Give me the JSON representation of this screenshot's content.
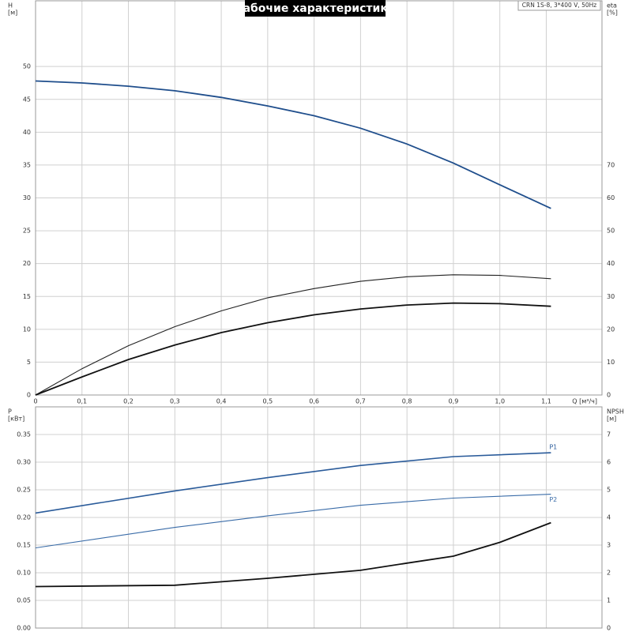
{
  "chart_data": [
    {
      "type": "line",
      "title": "Рабочие характеристики",
      "annotation": "CRN 1S-8, 3*400 V, 50Hz",
      "ylabel": "H",
      "yunit": "[м]",
      "y2label": "eta",
      "y2unit": "[%]",
      "xlabel": "Q [м³/ч]",
      "xlim": [
        0,
        1.22
      ],
      "xticks": [
        0,
        {
          "value": 0.1,
          "label": "0,1"
        },
        {
          "value": 0.2,
          "label": "0,2"
        },
        {
          "value": 0.3,
          "label": "0,3"
        },
        {
          "value": 0.4,
          "label": "0,4"
        },
        {
          "value": 0.5,
          "label": "0,5"
        },
        {
          "value": 0.6,
          "label": "0,6"
        },
        {
          "value": 0.7,
          "label": "0,7"
        },
        {
          "value": 0.8,
          "label": "0,8"
        },
        {
          "value": 0.9,
          "label": "0,9"
        },
        {
          "value": 1.0,
          "label": "1,0"
        },
        {
          "value": 1.1,
          "label": "1,1"
        }
      ],
      "ylim": [
        0,
        60
      ],
      "yticks": [
        0,
        5,
        10,
        15,
        20,
        25,
        30,
        35,
        40,
        45,
        50
      ],
      "y2lim": [
        0,
        120
      ],
      "y2ticks": [
        0,
        10,
        20,
        30,
        40,
        50,
        60,
        70
      ],
      "grid": true,
      "series": [
        {
          "color": "#1f4e8c",
          "width": 1.8,
          "x": [
            0,
            0.1,
            0.2,
            0.3,
            0.4,
            0.5,
            0.6,
            0.7,
            0.8,
            0.9,
            1.0,
            1.11
          ],
          "values": [
            47.8,
            47.5,
            47.0,
            46.3,
            45.3,
            44.0,
            42.5,
            40.6,
            38.2,
            35.3,
            32.0,
            28.4
          ]
        },
        {
          "color": "#222222",
          "width": 1.1,
          "axis": "y2",
          "x": [
            0,
            0.1,
            0.2,
            0.3,
            0.4,
            0.5,
            0.6,
            0.7,
            0.8,
            0.9,
            1.0,
            1.11
          ],
          "values": [
            0,
            8,
            15,
            20.8,
            25.6,
            29.6,
            32.4,
            34.6,
            36,
            36.6,
            36.4,
            35.4
          ]
        },
        {
          "color": "#111111",
          "width": 1.8,
          "axis": "y2",
          "x": [
            0,
            0.1,
            0.2,
            0.3,
            0.4,
            0.5,
            0.6,
            0.7,
            0.8,
            0.9,
            1.0,
            1.11
          ],
          "values": [
            0,
            5.5,
            10.8,
            15.2,
            19,
            22,
            24.4,
            26.2,
            27.4,
            28,
            27.8,
            27
          ]
        }
      ]
    },
    {
      "type": "line",
      "ylabel": "P",
      "yunit": "[кВт]",
      "y2label": "NPSH",
      "y2unit": "[м]",
      "xlim": [
        0,
        1.22
      ],
      "ylim": [
        0,
        0.4
      ],
      "yticks": [
        {
          "value": 0,
          "label": "0.00"
        },
        {
          "value": 0.05,
          "label": "0.05"
        },
        {
          "value": 0.1,
          "label": "0.10"
        },
        {
          "value": 0.15,
          "label": "0.15"
        },
        {
          "value": 0.2,
          "label": "0.20"
        },
        {
          "value": 0.25,
          "label": "0.25"
        },
        {
          "value": 0.3,
          "label": "0.30"
        },
        {
          "value": 0.35,
          "label": "0.35"
        }
      ],
      "y2lim": [
        0,
        8
      ],
      "y2ticks": [
        0,
        1,
        2,
        3,
        4,
        5,
        6,
        7
      ],
      "grid": true,
      "series": [
        {
          "name": "P1",
          "color": "#2a5b9a",
          "width": 1.6,
          "x": [
            0,
            0.3,
            0.5,
            0.7,
            0.9,
            1.11
          ],
          "values": [
            0.208,
            0.248,
            0.272,
            0.294,
            0.31,
            0.317
          ]
        },
        {
          "name": "P2",
          "color": "#3a6ca8",
          "width": 1.1,
          "x": [
            0,
            0.3,
            0.5,
            0.7,
            0.9,
            1.11
          ],
          "values": [
            0.145,
            0.182,
            0.203,
            0.222,
            0.235,
            0.242
          ]
        },
        {
          "color": "#111111",
          "width": 1.8,
          "axis": "y2",
          "x": [
            0,
            0.3,
            0.5,
            0.7,
            0.8,
            0.9,
            1.0,
            1.11
          ],
          "values": [
            1.5,
            1.55,
            1.8,
            2.09,
            2.35,
            2.6,
            3.1,
            3.81
          ]
        }
      ]
    }
  ]
}
